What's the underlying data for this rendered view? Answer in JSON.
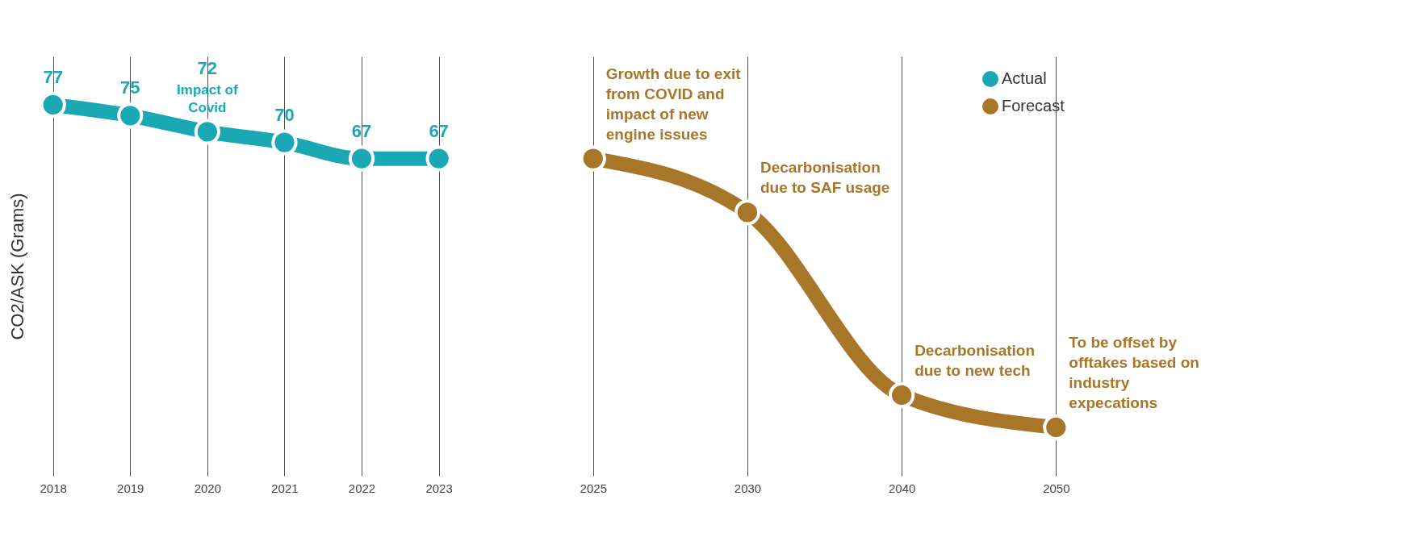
{
  "chart_data": {
    "type": "line",
    "ylabel": "CO2/ASK (Grams)",
    "categories": [
      "2018",
      "2019",
      "2020",
      "2021",
      "2022",
      "2023",
      null,
      "2025",
      null,
      "2030",
      null,
      "2040",
      null,
      "2050"
    ],
    "series": [
      {
        "name": "Actual",
        "color": "#1aa9b4",
        "values": [
          77,
          75,
          72,
          70,
          67,
          67,
          null,
          null,
          null,
          null,
          null,
          null,
          null,
          null
        ],
        "value_labels": [
          "77",
          "75",
          "72",
          "70",
          "67",
          "67",
          null,
          null,
          null,
          null,
          null,
          null,
          null,
          null
        ]
      },
      {
        "name": "Forecast",
        "color": "#a87628",
        "values": [
          null,
          null,
          null,
          null,
          null,
          null,
          null,
          67,
          null,
          57,
          null,
          23,
          null,
          17
        ]
      }
    ],
    "annotations": [
      {
        "text": "Impact of Covid",
        "x": "2020",
        "y": 72
      },
      {
        "text": "Growth due to exit from COVID and impact of new engine issues",
        "x": "2025",
        "y": 67
      },
      {
        "text": "Decarbonisation due to SAF usage",
        "x": "2030",
        "y": 57
      },
      {
        "text": "Decarbonisation due to new tech",
        "x": "2040",
        "y": 23
      },
      {
        "text": "To be offset by offtakes based on industry expecations",
        "x": "2050",
        "y": 17
      }
    ],
    "grid": "x",
    "legend": "top right",
    "tick_labels": "x",
    "marker": "circle",
    "line_style": "solid"
  }
}
